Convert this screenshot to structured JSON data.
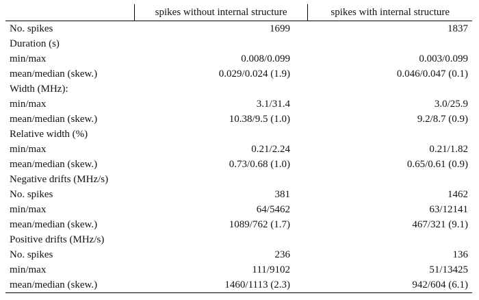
{
  "table": {
    "headers": [
      "",
      "spikes without internal structure",
      "spikes with internal structure"
    ],
    "rows": [
      [
        "No. spikes",
        "1699",
        "1837"
      ],
      [
        "Duration (s)",
        "",
        ""
      ],
      [
        "min/max",
        "0.008/0.099",
        "0.003/0.099"
      ],
      [
        "mean/median (skew.)",
        "0.029/0.024 (1.9)",
        "0.046/0.047 (0.1)"
      ],
      [
        "Width (MHz):",
        "",
        ""
      ],
      [
        "min/max",
        "3.1/31.4",
        "3.0/25.9"
      ],
      [
        "mean/median (skew.)",
        "10.38/9.5 (1.0)",
        "9.2/8.7 (0.9)"
      ],
      [
        "Relative width (%)",
        "",
        ""
      ],
      [
        "min/max",
        "0.21/2.24",
        "0.21/1.82"
      ],
      [
        "mean/median (skew.)",
        "0.73/0.68 (1.0)",
        "0.65/0.61 (0.9)"
      ],
      [
        "Negative drifts (MHz/s)",
        "",
        ""
      ],
      [
        "No. spikes",
        "381",
        "1462"
      ],
      [
        "min/max",
        "64/5462",
        "63/12141"
      ],
      [
        "mean/median (skew.)",
        "1089/762 (1.7)",
        "467/321 (9.1)"
      ],
      [
        "Positive drifts (MHz/s)",
        "",
        ""
      ],
      [
        "No. spikes",
        "236",
        "136"
      ],
      [
        "min/max",
        "111/9102",
        "51/13425"
      ],
      [
        "mean/median (skew.)",
        "1460/1113 (2.3)",
        "942/604 (6.1)"
      ]
    ]
  }
}
